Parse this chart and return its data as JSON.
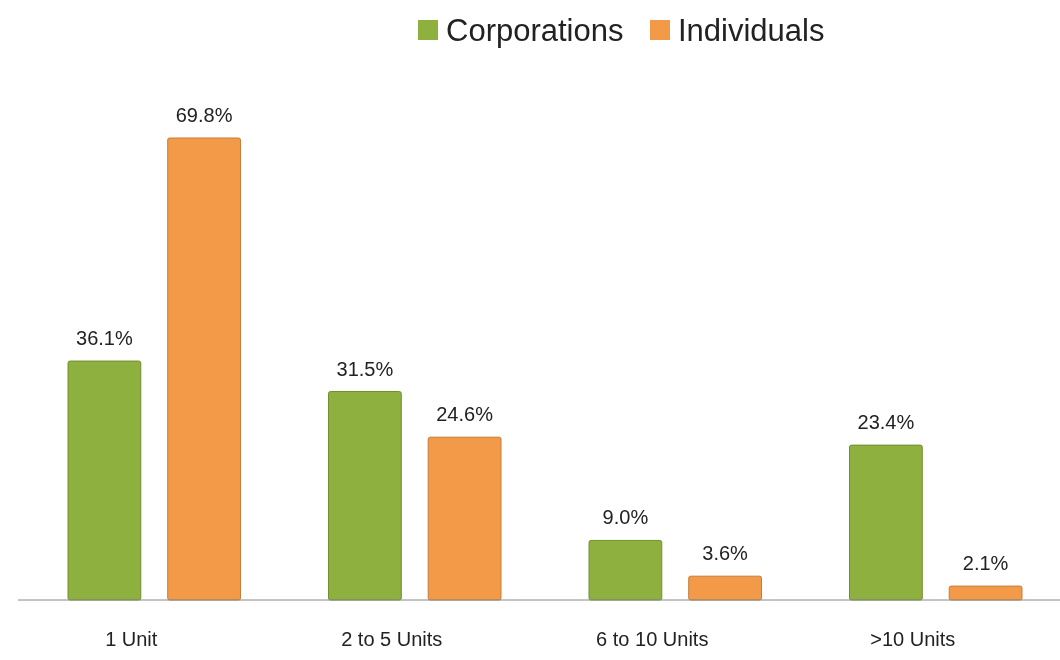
{
  "chart_data": {
    "type": "bar",
    "categories": [
      "1 Unit",
      "2 to 5 Units",
      "6 to 10 Units",
      ">10 Units"
    ],
    "series": [
      {
        "name": "Corporations",
        "color": "#8db03f",
        "values": [
          36.1,
          31.5,
          9.0,
          23.4
        ],
        "value_labels": [
          "36.1%",
          "31.5%",
          "9.0%",
          "23.4%"
        ]
      },
      {
        "name": "Individuals",
        "color": "#f39a48",
        "values": [
          69.8,
          24.6,
          3.6,
          2.1
        ],
        "value_labels": [
          "69.8%",
          "24.6%",
          "3.6%",
          "2.1%"
        ]
      }
    ],
    "legend": "top"
  }
}
